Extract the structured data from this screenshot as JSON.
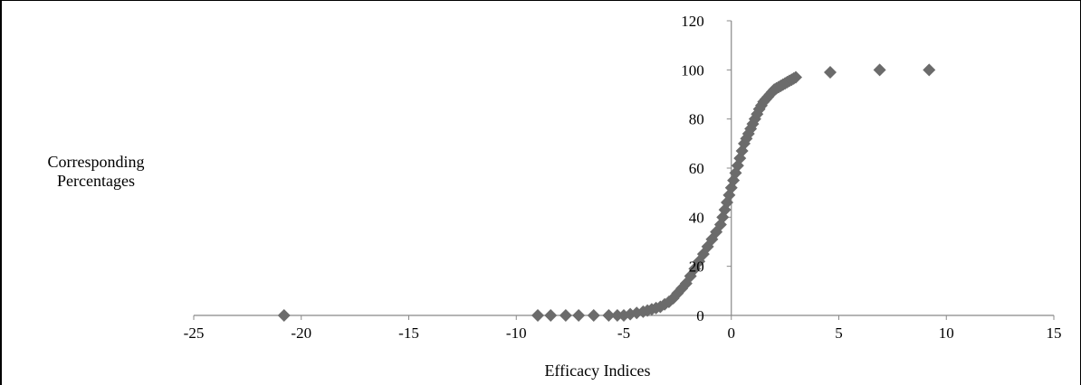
{
  "chart_data": {
    "type": "scatter",
    "title": "",
    "xlabel": "Efficacy Indices",
    "ylabel_lines": [
      "Corresponding",
      "Percentages"
    ],
    "xlim": [
      -25,
      15
    ],
    "ylim": [
      0,
      120
    ],
    "xticks": [
      -25,
      -20,
      -15,
      -10,
      -5,
      0,
      5,
      10,
      15
    ],
    "yticks": [
      0,
      20,
      40,
      60,
      80,
      100,
      120
    ],
    "grid": false,
    "legend": "none",
    "marker": "diamond",
    "marker_color": "#6b6b6b",
    "x": [
      -20.8,
      -9.0,
      -8.4,
      -7.7,
      -7.1,
      -6.4,
      -5.7,
      -5.3,
      -5.0,
      -4.7,
      -4.4,
      -4.1,
      -3.9,
      -3.7,
      -3.5,
      -3.3,
      -3.1,
      -2.9,
      -2.7,
      -2.5,
      -2.3,
      -2.1,
      -1.9,
      -1.7,
      -1.5,
      -1.3,
      -1.1,
      -0.9,
      -0.7,
      -0.5,
      -0.4,
      -0.3,
      -0.2,
      -0.1,
      0.0,
      0.1,
      0.2,
      0.3,
      0.4,
      0.5,
      0.6,
      0.7,
      0.8,
      0.9,
      1.0,
      1.1,
      1.2,
      1.3,
      1.4,
      1.5,
      1.6,
      1.7,
      1.8,
      1.9,
      2.0,
      2.1,
      2.2,
      2.3,
      2.4,
      2.5,
      2.6,
      2.7,
      2.8,
      2.9,
      3.0,
      4.6,
      6.9,
      9.2
    ],
    "y": [
      0,
      0,
      0,
      0,
      0,
      0,
      0,
      0,
      0,
      0.5,
      1,
      1.5,
      2,
      2.5,
      3,
      3.5,
      4.5,
      5.5,
      7,
      9,
      11,
      13,
      16,
      19,
      22,
      25,
      28,
      31,
      34,
      37,
      40,
      43,
      46,
      49,
      52,
      55,
      58,
      61,
      64,
      67,
      70,
      72,
      74,
      76,
      78,
      80,
      82,
      84,
      85.5,
      87,
      88,
      89,
      90,
      91,
      92,
      92.5,
      93,
      93.5,
      94,
      94.5,
      95,
      95.5,
      96,
      96.5,
      97,
      99,
      100,
      100
    ]
  }
}
